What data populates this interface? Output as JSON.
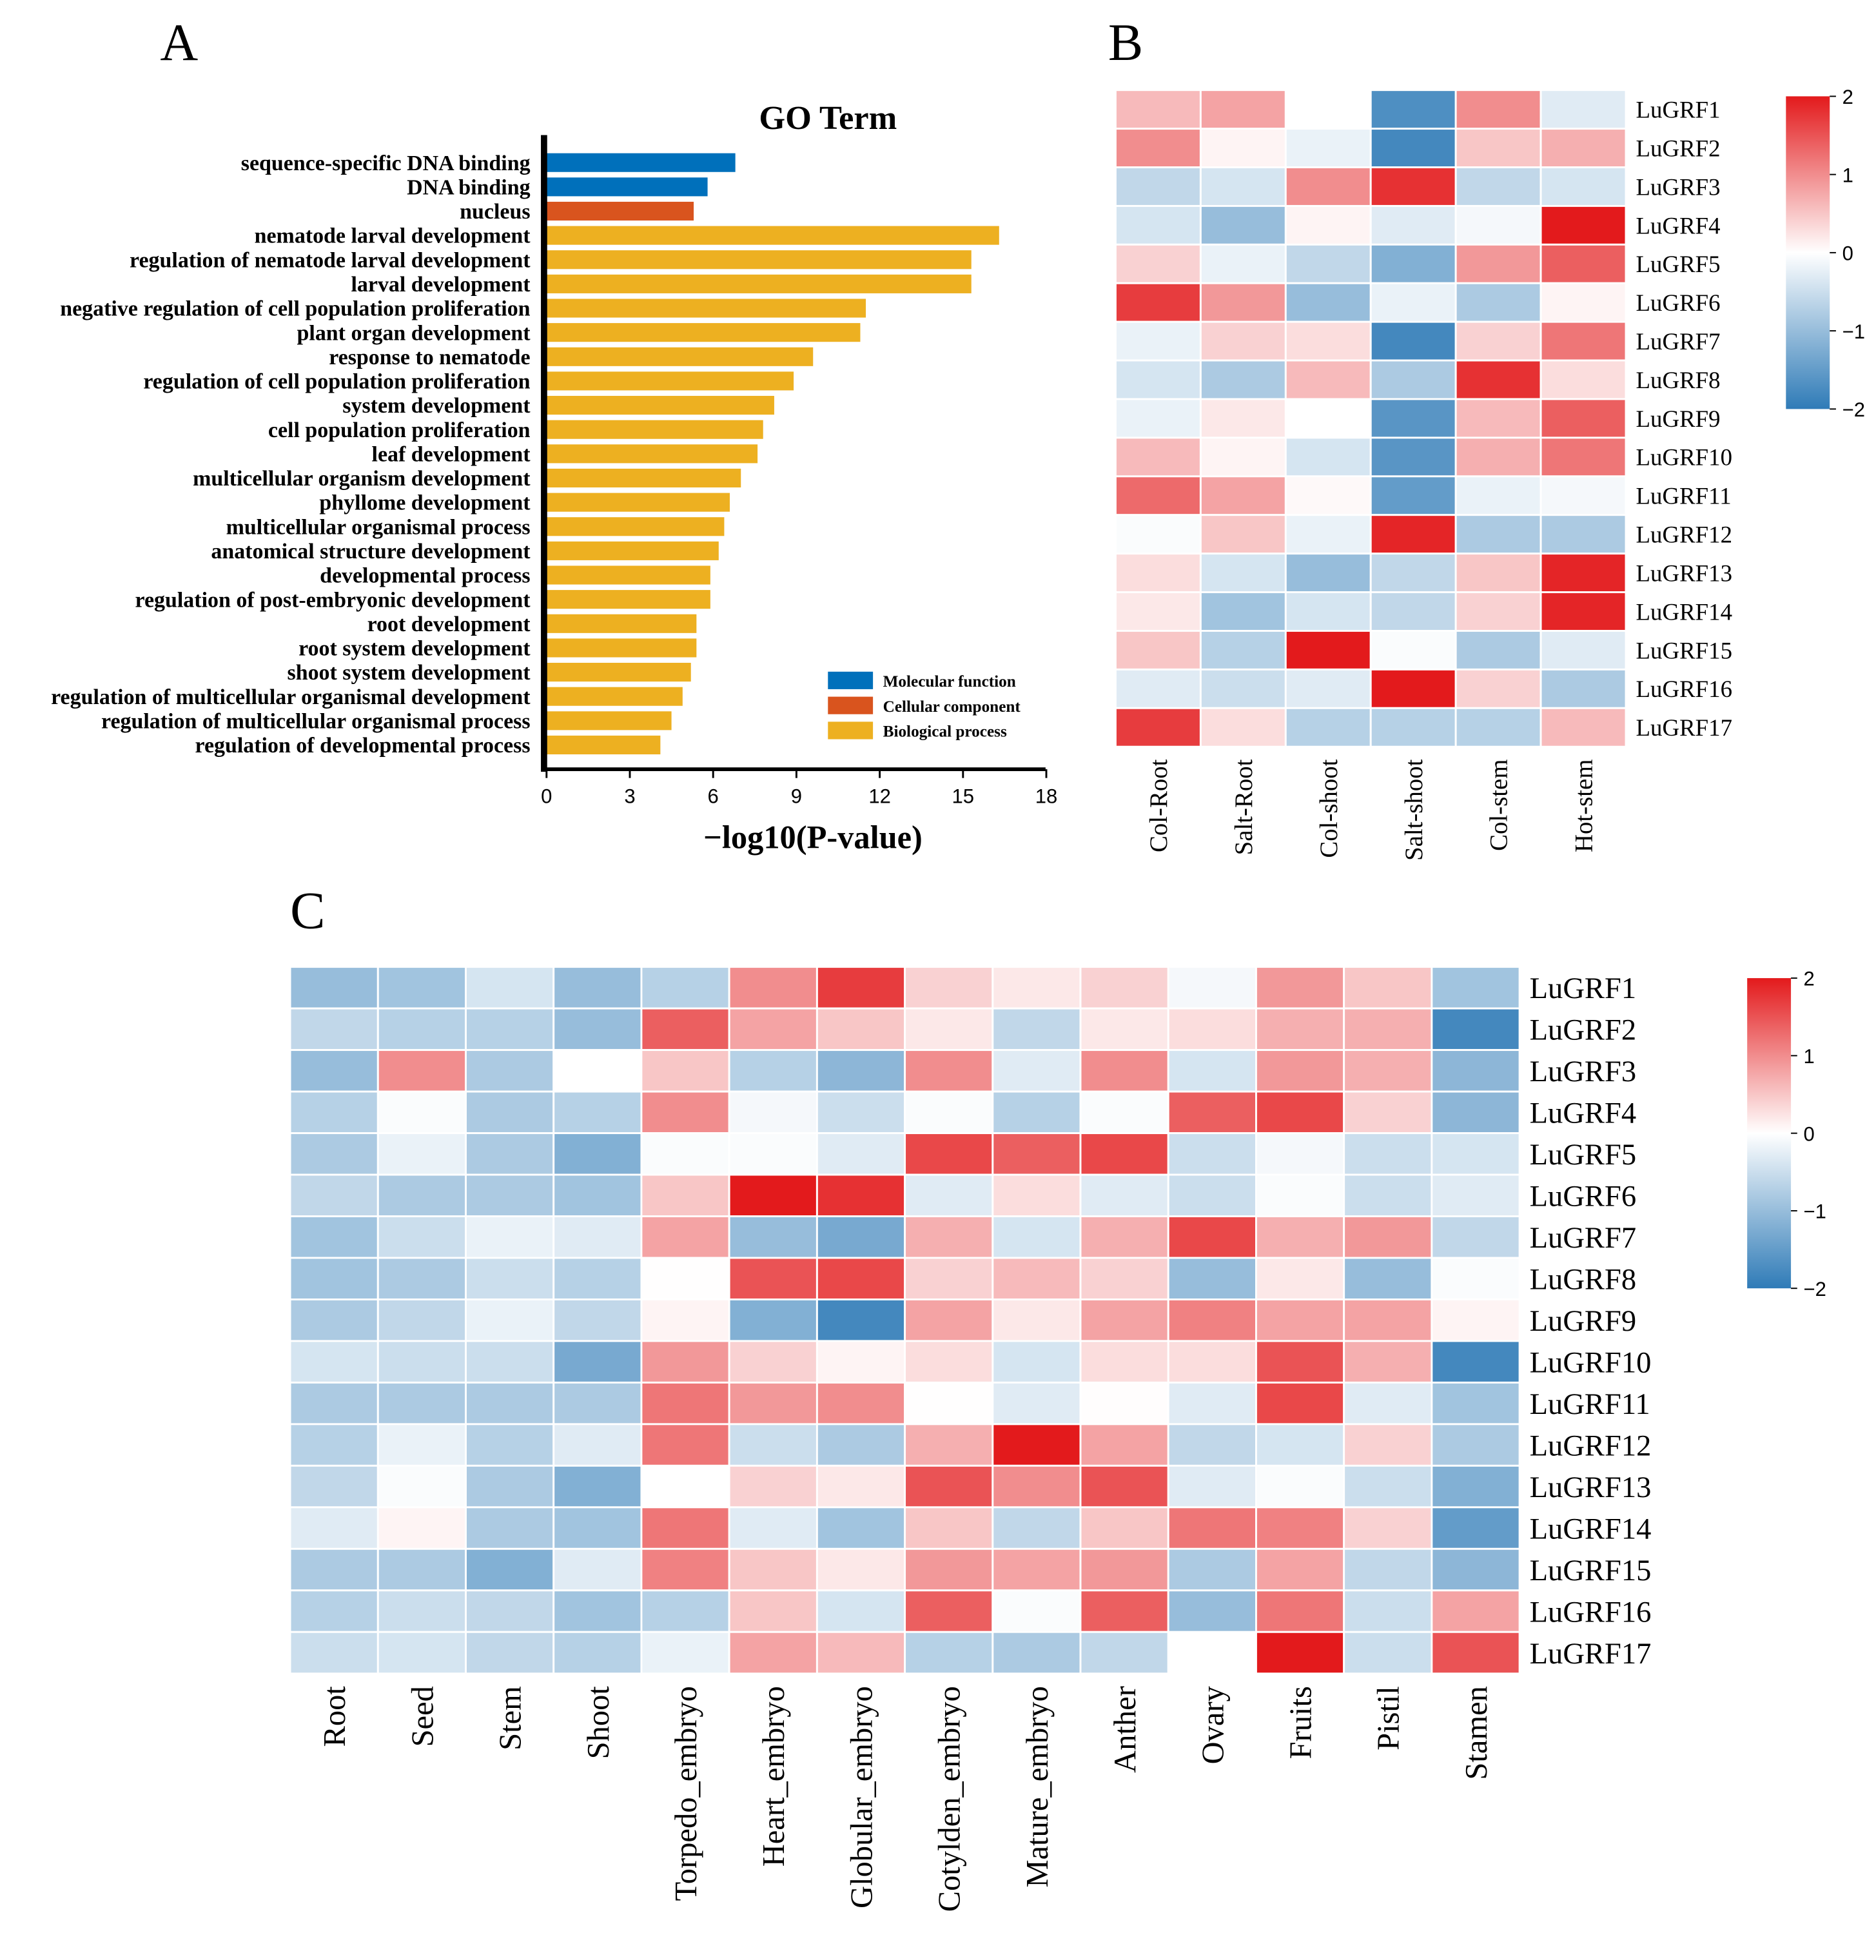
{
  "panel_labels": {
    "a": "A",
    "b": "B",
    "c": "C"
  },
  "chart_data": [
    {
      "type": "bar",
      "orientation": "horizontal",
      "title": "GO Term",
      "xlabel": "−log10(P-value)",
      "ylabel": "",
      "xlim": [
        0,
        18
      ],
      "xticks": [
        0,
        3,
        6,
        9,
        12,
        15,
        18
      ],
      "legend_position": "bottom-right",
      "legend": [
        {
          "name": "Molecular function",
          "color": "#0070bb"
        },
        {
          "name": "Cellular component",
          "color": "#d9541e"
        },
        {
          "name": "Biological process",
          "color": "#edb021"
        }
      ],
      "categories": [
        "sequence-specific DNA binding",
        "DNA binding",
        "nucleus",
        "nematode larval development",
        "regulation of nematode larval development",
        "larval development",
        "negative regulation of cell population proliferation",
        "plant organ development",
        "response to nematode",
        "regulation of cell population proliferation",
        "system development",
        "cell population proliferation",
        "leaf development",
        "multicellular organism development",
        "phyllome development",
        "multicellular organismal process",
        "anatomical structure development",
        "developmental process",
        "regulation of post-embryonic development",
        "root development",
        "root system development",
        "shoot system development",
        "regulation of multicellular organismal development",
        "regulation of multicellular organismal process",
        "regulation of developmental process"
      ],
      "groups": [
        0,
        0,
        1,
        2,
        2,
        2,
        2,
        2,
        2,
        2,
        2,
        2,
        2,
        2,
        2,
        2,
        2,
        2,
        2,
        2,
        2,
        2,
        2,
        2,
        2
      ],
      "values": [
        6.8,
        5.8,
        5.3,
        16.3,
        15.3,
        15.3,
        11.5,
        11.3,
        9.6,
        8.9,
        8.2,
        7.8,
        7.6,
        7.0,
        6.6,
        6.4,
        6.2,
        5.9,
        5.9,
        5.4,
        5.4,
        5.2,
        4.9,
        4.5,
        4.1
      ]
    },
    {
      "type": "heatmap",
      "rows": [
        "LuGRF1",
        "LuGRF2",
        "LuGRF3",
        "LuGRF4",
        "LuGRF5",
        "LuGRF6",
        "LuGRF7",
        "LuGRF8",
        "LuGRF9",
        "LuGRF10",
        "LuGRF11",
        "LuGRF12",
        "LuGRF13",
        "LuGRF14",
        "LuGRF15",
        "LuGRF16",
        "LuGRF17"
      ],
      "columns": [
        "Col-Root",
        "Salt-Root",
        "Col-shoot",
        "Salt-shoot",
        "Col-stem",
        "Hot-stem"
      ],
      "colorbar": {
        "range": [
          -2,
          2
        ],
        "ticks": [
          "2",
          "1",
          "0",
          "−1",
          "−2"
        ],
        "low": "#2f7bb7",
        "mid": "#ffffff",
        "high": "#e31a1c"
      },
      "values": [
        [
          0.6,
          0.8,
          0,
          -1.7,
          1.0,
          -0.3
        ],
        [
          1.0,
          0.1,
          -0.2,
          -1.8,
          0.5,
          0.7
        ],
        [
          -0.6,
          -0.4,
          1.0,
          1.8,
          -0.6,
          -0.4
        ],
        [
          -0.4,
          -1.0,
          0.1,
          -0.3,
          -0.1,
          2.0
        ],
        [
          0.4,
          -0.2,
          -0.6,
          -1.2,
          0.9,
          1.4
        ],
        [
          1.7,
          0.9,
          -1.0,
          -0.2,
          -0.8,
          0.1
        ],
        [
          -0.2,
          0.4,
          0.3,
          -1.8,
          0.4,
          1.2
        ],
        [
          -0.4,
          -0.8,
          0.6,
          -0.8,
          1.8,
          0.3
        ],
        [
          -0.2,
          0.2,
          0,
          -1.6,
          0.6,
          1.4
        ],
        [
          0.6,
          0.1,
          -0.4,
          -1.6,
          0.7,
          1.2
        ],
        [
          1.3,
          0.8,
          0.05,
          -1.5,
          -0.2,
          -0.1
        ],
        [
          -0.05,
          0.5,
          -0.2,
          1.9,
          -0.8,
          -0.8
        ],
        [
          0.3,
          -0.4,
          -1.0,
          -0.6,
          0.5,
          1.9
        ],
        [
          0.2,
          -0.9,
          -0.4,
          -0.6,
          0.4,
          1.9
        ],
        [
          0.5,
          -0.7,
          2.0,
          -0.05,
          -0.8,
          -0.3
        ],
        [
          -0.3,
          -0.5,
          -0.3,
          2.0,
          0.4,
          -0.8
        ],
        [
          1.7,
          0.3,
          -0.7,
          -0.7,
          -0.7,
          0.6
        ]
      ]
    },
    {
      "type": "heatmap",
      "rows": [
        "LuGRF1",
        "LuGRF2",
        "LuGRF3",
        "LuGRF4",
        "LuGRF5",
        "LuGRF6",
        "LuGRF7",
        "LuGRF8",
        "LuGRF9",
        "LuGRF10",
        "LuGRF11",
        "LuGRF12",
        "LuGRF13",
        "LuGRF14",
        "LuGRF15",
        "LuGRF16",
        "LuGRF17"
      ],
      "columns": [
        "Root",
        "Seed",
        "Stem",
        "Shoot",
        "Torpedo_embryo",
        "Heart_embryo",
        "Globular_embryo",
        "Cotylden_embryo",
        "Mature_embryo",
        "Anther",
        "Ovary",
        "Fruits",
        "Pistil",
        "Stamen"
      ],
      "colorbar": {
        "range": [
          -2,
          2
        ],
        "ticks": [
          "2",
          "1",
          "0",
          "−1",
          "−2"
        ],
        "low": "#2f7bb7",
        "mid": "#ffffff",
        "high": "#e31a1c"
      },
      "values": [
        [
          -1.0,
          -0.9,
          -0.4,
          -1.0,
          -0.7,
          1.0,
          1.7,
          0.4,
          0.2,
          0.4,
          -0.1,
          0.9,
          0.5,
          -0.9
        ],
        [
          -0.6,
          -0.7,
          -0.7,
          -1.0,
          1.4,
          0.8,
          0.5,
          0.2,
          -0.6,
          0.2,
          0.3,
          0.7,
          0.7,
          -1.8
        ],
        [
          -1.0,
          1.0,
          -0.8,
          0,
          0.5,
          -0.7,
          -1.1,
          1.0,
          -0.3,
          1.0,
          -0.4,
          0.9,
          0.7,
          -1.1
        ],
        [
          -0.7,
          -0.05,
          -0.8,
          -0.7,
          1.0,
          -0.1,
          -0.5,
          -0.05,
          -0.7,
          -0.05,
          1.4,
          1.6,
          0.4,
          -1.1
        ],
        [
          -0.8,
          -0.2,
          -0.8,
          -1.2,
          -0.05,
          -0.05,
          -0.3,
          1.6,
          1.4,
          1.6,
          -0.5,
          -0.1,
          -0.5,
          -0.4
        ],
        [
          -0.6,
          -0.8,
          -0.8,
          -0.9,
          0.5,
          2.0,
          1.8,
          -0.3,
          0.3,
          -0.3,
          -0.5,
          -0.05,
          -0.5,
          -0.3
        ],
        [
          -0.9,
          -0.5,
          -0.2,
          -0.3,
          0.8,
          -1.0,
          -1.3,
          0.7,
          -0.4,
          0.7,
          1.6,
          0.7,
          0.9,
          -0.6
        ],
        [
          -0.9,
          -0.8,
          -0.5,
          -0.7,
          0.01,
          1.5,
          1.6,
          0.4,
          0.6,
          0.4,
          -1.0,
          0.2,
          -1.0,
          -0.05
        ],
        [
          -0.8,
          -0.6,
          -0.2,
          -0.6,
          0.1,
          -1.2,
          -1.8,
          0.8,
          0.2,
          0.8,
          1.1,
          0.8,
          0.8,
          0.1
        ],
        [
          -0.4,
          -0.5,
          -0.5,
          -1.3,
          0.9,
          0.4,
          0.1,
          0.3,
          -0.4,
          0.3,
          0.3,
          1.5,
          0.7,
          -1.8
        ],
        [
          -0.8,
          -0.8,
          -0.8,
          -0.8,
          1.2,
          0.9,
          1.0,
          0.01,
          -0.3,
          0.02,
          -0.3,
          1.6,
          -0.3,
          -0.9
        ],
        [
          -0.7,
          -0.2,
          -0.7,
          -0.3,
          1.2,
          -0.5,
          -0.8,
          0.7,
          2.0,
          0.8,
          -0.6,
          -0.4,
          0.4,
          -0.8
        ],
        [
          -0.6,
          -0.05,
          -0.8,
          -1.2,
          0,
          0.4,
          0.2,
          1.5,
          1.0,
          1.5,
          -0.3,
          -0.05,
          -0.5,
          -1.2
        ],
        [
          -0.3,
          0.1,
          -0.8,
          -0.9,
          1.2,
          -0.3,
          -0.9,
          0.5,
          -0.6,
          0.5,
          1.2,
          1.1,
          0.4,
          -1.5
        ],
        [
          -0.8,
          -0.8,
          -1.2,
          -0.3,
          1.1,
          0.5,
          0.2,
          0.9,
          0.8,
          0.9,
          -0.8,
          0.8,
          -0.6,
          -1.1
        ],
        [
          -0.7,
          -0.5,
          -0.6,
          -0.9,
          -0.7,
          0.5,
          -0.4,
          1.4,
          -0.05,
          1.4,
          -1.0,
          1.2,
          -0.5,
          0.8
        ],
        [
          -0.5,
          -0.4,
          -0.6,
          -0.7,
          -0.2,
          0.8,
          0.6,
          -0.7,
          -0.8,
          -0.6,
          0,
          2.0,
          -0.5,
          1.5
        ]
      ]
    }
  ]
}
